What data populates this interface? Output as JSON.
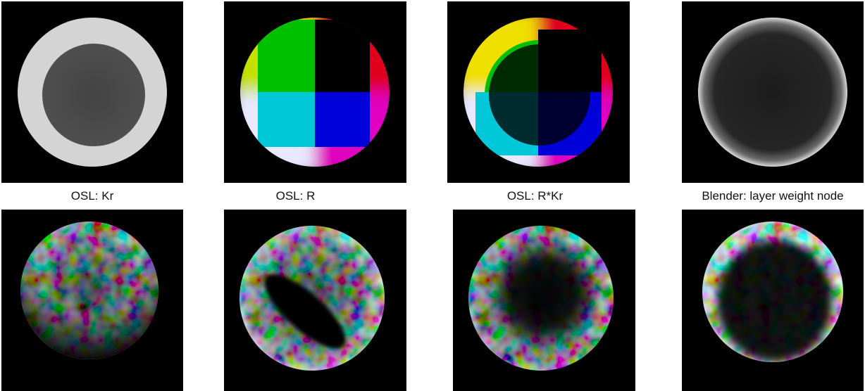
{
  "captions": {
    "kr": "OSL: Kr",
    "r": "OSL: R",
    "rkr": "OSL: R*Kr",
    "layer_weight": "Blender: layer weight node"
  },
  "colors": {
    "background": "#000000",
    "page": "#ffffff",
    "kr_rim": "#d4d4d4",
    "kr_center": "#4a4a4a",
    "red": "#e0001a",
    "green": "#00c000",
    "cyan": "#00c8d8",
    "blue": "#0000e0",
    "magenta": "#e000c0",
    "yellow": "#e8e000"
  }
}
